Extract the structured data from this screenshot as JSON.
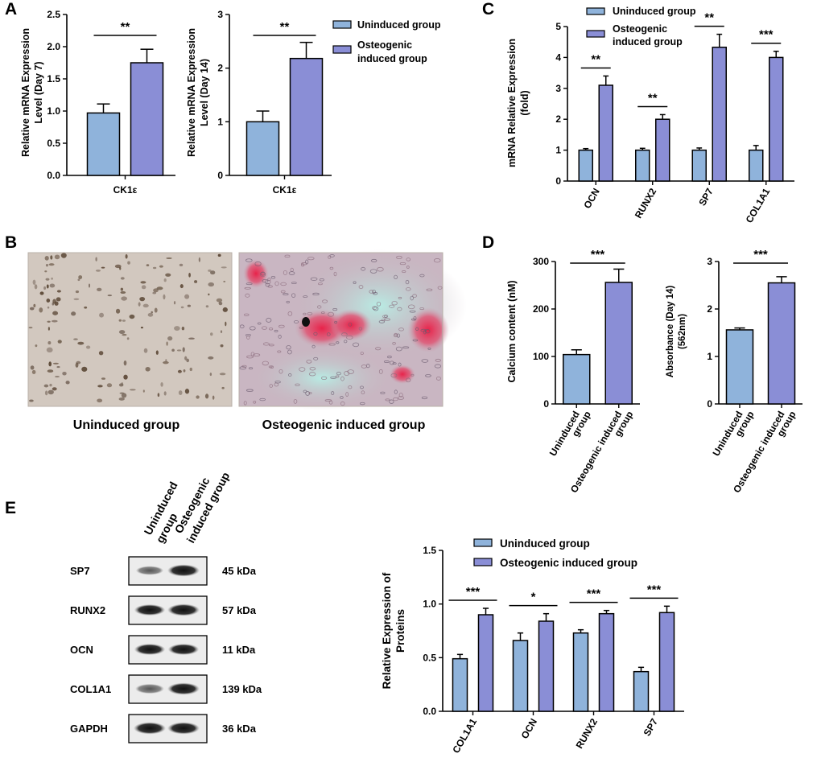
{
  "colors": {
    "uninduced": "#8fb3db",
    "induced": "#8a8ed6",
    "axis": "#000000"
  },
  "legend": {
    "uninduced": "Uninduced group",
    "osteogenic_line1": "Osteogenic",
    "osteogenic_line2": "induced group",
    "osteogenic_full": "Osteogenic induced group"
  },
  "panels": {
    "A": {
      "label": "A",
      "left": {
        "ylabel1": "Relative  mRNA Expression",
        "ylabel2": "Level (Day 7)",
        "category": "CK1ε",
        "sig": "**"
      },
      "right": {
        "ylabel1": "Relative  mRNA Expression",
        "ylabel2": "Level (Day 14)",
        "category": "CK1ε",
        "sig": "**"
      }
    },
    "B": {
      "label": "B",
      "caption_left": "Uninduced group",
      "caption_right": "Osteogenic induced group"
    },
    "C": {
      "label": "C",
      "ylabel1": "mRNA Relative Expression",
      "ylabel2": "(fold)"
    },
    "D": {
      "label": "D",
      "left": {
        "ylabel": "Calcium content (nM)",
        "sig": "***"
      },
      "right": {
        "ylabel1": "Absorbance (Day 14)",
        "ylabel2": "(562nm)",
        "sig": "***"
      },
      "cat1_line1": "Uninduced",
      "cat1_line2": "group",
      "cat2_line1": "Osteogenic induced",
      "cat2_line2": "group"
    },
    "E": {
      "label": "E",
      "lane1_line1": "Uninduced",
      "lane1_line2": "group",
      "lane2_line1": "Osteogenic",
      "lane2_line2": "induced group",
      "blots": [
        {
          "protein": "SP7",
          "weight": "45 kDa"
        },
        {
          "protein": "RUNX2",
          "weight": "57 kDa"
        },
        {
          "protein": "OCN",
          "weight": "11 kDa"
        },
        {
          "protein": "COL1A1",
          "weight": "139 kDa"
        },
        {
          "protein": "GAPDH",
          "weight": "36 kDa"
        }
      ],
      "ylabel1": "Relative  Expression of",
      "ylabel2": "Proteins"
    }
  },
  "chart_data": [
    {
      "id": "A-left",
      "type": "bar",
      "categories": [
        "CK1ε"
      ],
      "series": [
        {
          "name": "Uninduced group",
          "values": [
            0.97
          ],
          "errors": [
            0.14
          ]
        },
        {
          "name": "Osteogenic induced group",
          "values": [
            1.75
          ],
          "errors": [
            0.21
          ]
        }
      ],
      "ylim": [
        0,
        2.5
      ],
      "yticks": [
        "0.0",
        "0.5",
        "1.0",
        "1.5",
        "2.0",
        "2.5"
      ],
      "sig": [
        "**"
      ],
      "grid": false
    },
    {
      "id": "A-right",
      "type": "bar",
      "categories": [
        "CK1ε"
      ],
      "series": [
        {
          "name": "Uninduced group",
          "values": [
            1.0
          ],
          "errors": [
            0.2
          ]
        },
        {
          "name": "Osteogenic induced group",
          "values": [
            2.18
          ],
          "errors": [
            0.3
          ]
        }
      ],
      "ylim": [
        0,
        3
      ],
      "yticks": [
        "0",
        "1",
        "2",
        "3"
      ],
      "sig": [
        "**"
      ],
      "grid": false,
      "legend": "top-right"
    },
    {
      "id": "C",
      "type": "bar",
      "categories": [
        "OCN",
        "RUNX2",
        "SP7",
        "COL1A1"
      ],
      "series": [
        {
          "name": "Uninduced group",
          "values": [
            1.0,
            1.0,
            1.0,
            1.0
          ],
          "errors": [
            0.05,
            0.06,
            0.07,
            0.15
          ]
        },
        {
          "name": "Osteogenic induced group",
          "values": [
            3.1,
            2.0,
            4.33,
            4.0
          ],
          "errors": [
            0.3,
            0.15,
            0.42,
            0.2
          ]
        }
      ],
      "ylim": [
        0,
        5
      ],
      "yticks": [
        "0",
        "1",
        "2",
        "3",
        "4",
        "5"
      ],
      "sig": [
        "**",
        "**",
        "**",
        "***"
      ],
      "grid": false,
      "legend": "top"
    },
    {
      "id": "D-left",
      "type": "bar",
      "categories": [
        "Uninduced group",
        "Osteogenic induced group"
      ],
      "series": [
        {
          "name": "",
          "values": [
            104,
            256
          ],
          "errors": [
            10,
            28
          ]
        }
      ],
      "ylim": [
        0,
        300
      ],
      "yticks": [
        "0",
        "100",
        "200",
        "300"
      ],
      "sig": [
        "***"
      ],
      "grid": false
    },
    {
      "id": "D-right",
      "type": "bar",
      "categories": [
        "Uninduced group",
        "Osteogenic induced group"
      ],
      "series": [
        {
          "name": "",
          "values": [
            1.56,
            2.55
          ],
          "errors": [
            0.04,
            0.13
          ]
        }
      ],
      "ylim": [
        0,
        3
      ],
      "yticks": [
        "0",
        "1",
        "2",
        "3"
      ],
      "sig": [
        "***"
      ],
      "grid": false
    },
    {
      "id": "E",
      "type": "bar",
      "categories": [
        "COL1A1",
        "OCN",
        "RUNX2",
        "SP7"
      ],
      "series": [
        {
          "name": "Uninduced group",
          "values": [
            0.49,
            0.66,
            0.73,
            0.37
          ],
          "errors": [
            0.04,
            0.07,
            0.03,
            0.04
          ]
        },
        {
          "name": "Osteogenic induced group",
          "values": [
            0.9,
            0.84,
            0.91,
            0.92
          ],
          "errors": [
            0.06,
            0.07,
            0.03,
            0.06
          ]
        }
      ],
      "ylim": [
        0,
        1.5
      ],
      "yticks": [
        "0.0",
        "0.5",
        "1.0",
        "1.5"
      ],
      "sig": [
        "***",
        "*",
        "***",
        "***"
      ],
      "grid": false,
      "legend": "top"
    }
  ]
}
